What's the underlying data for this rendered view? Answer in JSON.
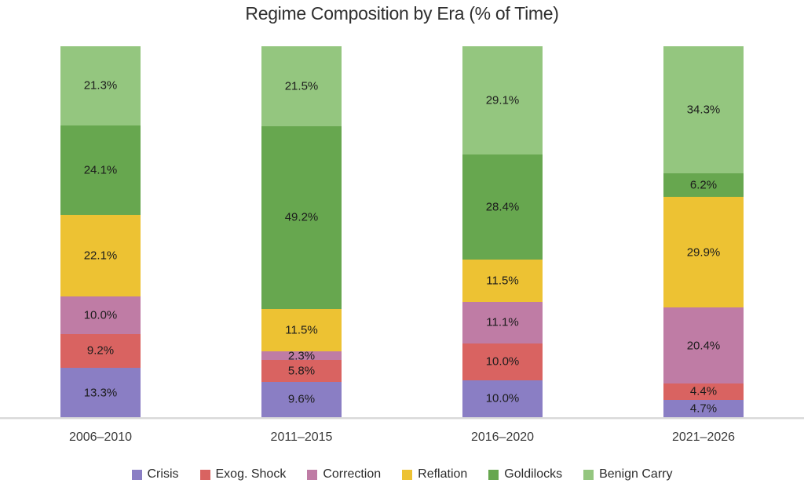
{
  "chart_data": {
    "type": "bar",
    "variant": "stacked-percentage",
    "title": "Regime Composition by Era (% of Time)",
    "categories": [
      "2006–2010",
      "2011–2015",
      "2016–2020",
      "2021–2026"
    ],
    "series": [
      {
        "name": "Crisis",
        "color": "#8A7EC4",
        "values": [
          13.3,
          9.6,
          10.0,
          4.7
        ]
      },
      {
        "name": "Exog. Shock",
        "color": "#D96361",
        "values": [
          9.2,
          5.8,
          10.0,
          4.4
        ]
      },
      {
        "name": "Correction",
        "color": "#BF7CA5",
        "values": [
          10.0,
          2.3,
          11.1,
          20.4
        ]
      },
      {
        "name": "Reflation",
        "color": "#EDC233",
        "values": [
          22.1,
          11.5,
          11.5,
          29.9
        ]
      },
      {
        "name": "Goldilocks",
        "color": "#67A74F",
        "values": [
          24.1,
          49.2,
          28.4,
          6.2
        ]
      },
      {
        "name": "Benign Carry",
        "color": "#94C67F",
        "values": [
          21.3,
          21.5,
          29.1,
          34.3
        ]
      }
    ],
    "value_suffix": "%",
    "value_decimals": 1,
    "xlabel": "",
    "ylabel": "",
    "ylim": [
      0,
      100
    ],
    "grid": false,
    "legend_position": "bottom",
    "axis_line_color": "#D9D9D9",
    "label_color": "#1C1C1C"
  }
}
